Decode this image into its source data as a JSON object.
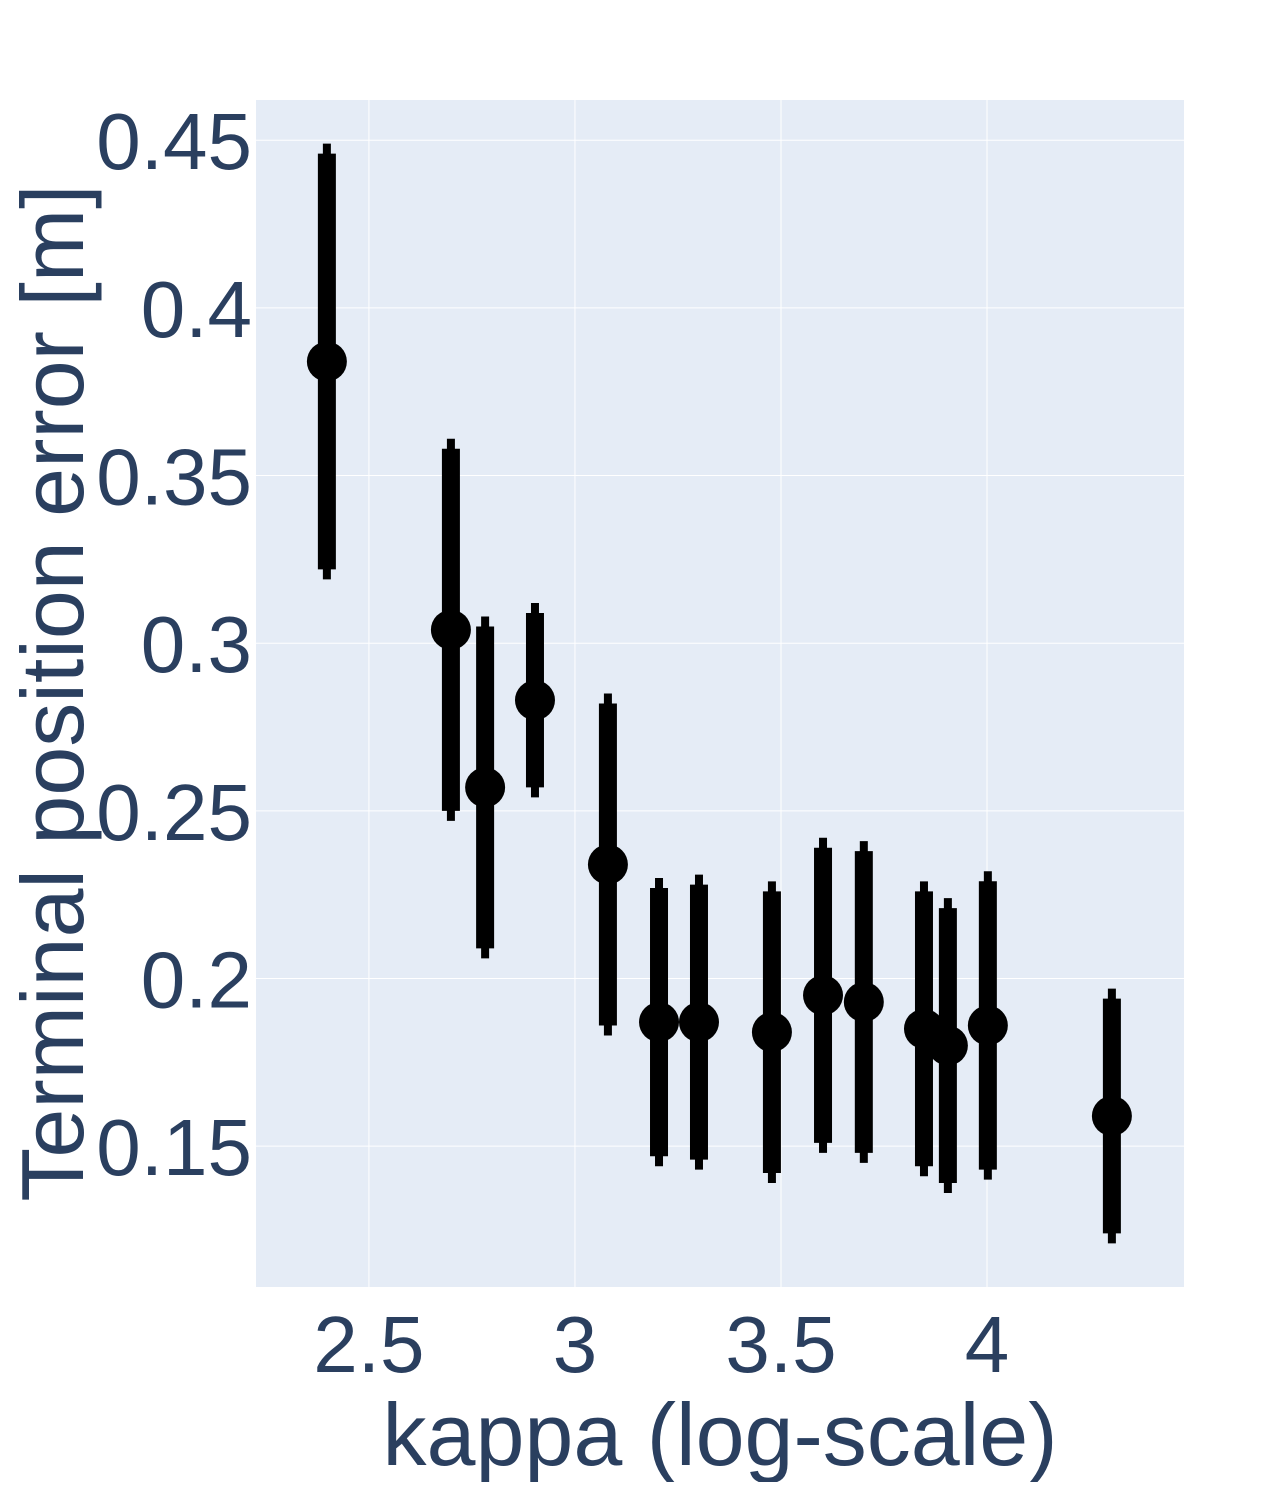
{
  "chart_data": {
    "type": "errorbar-scatter",
    "x_label": "kappa (log-scale)",
    "y_label": "Terminal position error [m]",
    "series": [
      {
        "color": "#000000",
        "x": [
          2.398,
          2.699,
          2.782,
          2.903,
          3.08,
          3.204,
          3.301,
          3.478,
          3.602,
          3.701,
          3.847,
          3.905,
          4.002,
          4.303
        ],
        "values": [
          0.384,
          0.304,
          0.257,
          0.283,
          0.234,
          0.187,
          0.187,
          0.184,
          0.195,
          0.193,
          0.185,
          0.18,
          0.186,
          0.159
        ],
        "errors": [
          0.062,
          0.054,
          0.048,
          0.026,
          0.048,
          0.04,
          0.041,
          0.042,
          0.044,
          0.045,
          0.041,
          0.041,
          0.043,
          0.035
        ]
      }
    ],
    "xlim": [
      2.226,
      4.478
    ],
    "xticks": [
      2.5,
      3,
      3.5,
      4
    ],
    "ylim": [
      0.108,
      0.462
    ],
    "yticks": [
      0.15,
      0.2,
      0.25,
      0.3,
      0.35,
      0.4,
      0.45
    ],
    "grid": true
  }
}
